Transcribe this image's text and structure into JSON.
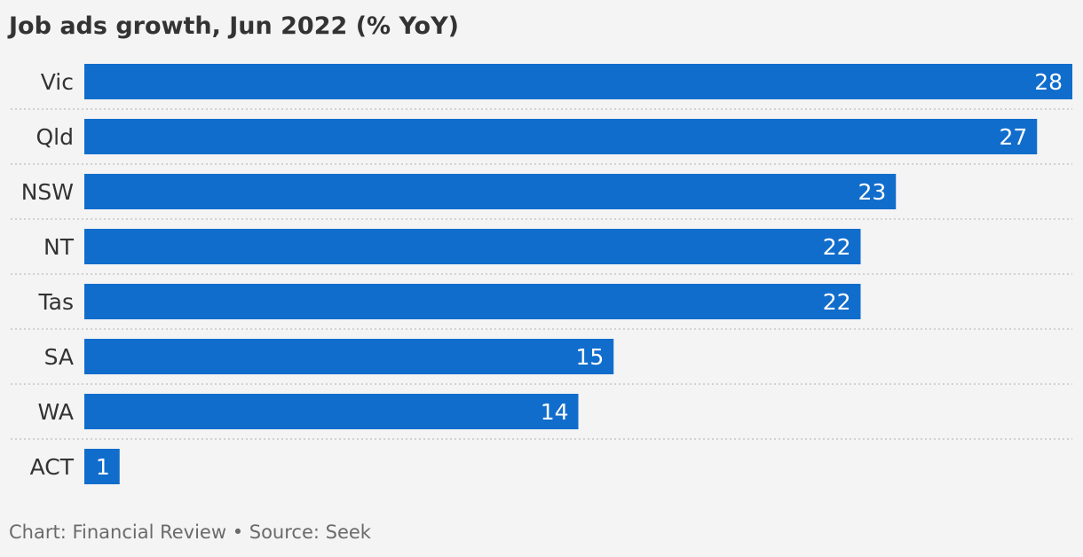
{
  "chart_data": {
    "type": "bar",
    "orientation": "horizontal",
    "title": "Job ads growth, Jun 2022 (% YoY)",
    "categories": [
      "Vic",
      "Qld",
      "NSW",
      "NT",
      "Tas",
      "SA",
      "WA",
      "ACT"
    ],
    "values": [
      28,
      27,
      23,
      22,
      22,
      15,
      14,
      1
    ],
    "xlim": [
      0,
      28
    ],
    "grid": false,
    "row_separators": "dotted",
    "bar_color": "#116dcc",
    "value_label_color": "#ffffff",
    "value_label_position": "inside-end"
  },
  "footer": {
    "credit": "Chart: Financial Review • Source: Seek"
  }
}
